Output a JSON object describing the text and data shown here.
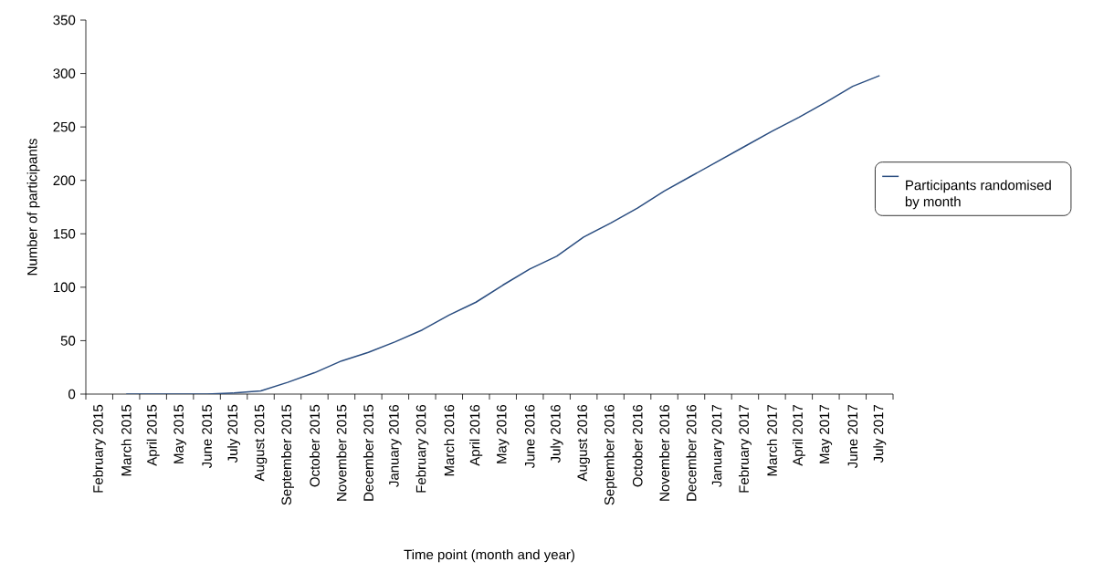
{
  "chart_data": {
    "type": "line",
    "xlabel": "Time point (month and year)",
    "ylabel": "Number of participants",
    "categories": [
      "February 2015",
      "March 2015",
      "April 2015",
      "May 2015",
      "June 2015",
      "July 2015",
      "August 2015",
      "September 2015",
      "October 2015",
      "November 2015",
      "December 2015",
      "January 2016",
      "February 2016",
      "March 2016",
      "April 2016",
      "May 2016",
      "June 2016",
      "July 2016",
      "August 2016",
      "September 2016",
      "October 2016",
      "November 2016",
      "December 2016",
      "January 2017",
      "February 2017",
      "March 2017",
      "April 2017",
      "May 2017",
      "June 2017",
      "July 2017"
    ],
    "series": [
      {
        "name": "Participants randomised by month",
        "color": "#2a4d80",
        "values": [
          null,
          0,
          0,
          0,
          0,
          1,
          3,
          11,
          20,
          31,
          39,
          49,
          60,
          74,
          86,
          102,
          117,
          129,
          147,
          160,
          174,
          190,
          204,
          218,
          232,
          246,
          259,
          273,
          288,
          298
        ]
      }
    ],
    "ylim": [
      0,
      350
    ],
    "yticks": [
      0,
      50,
      100,
      150,
      200,
      250,
      300,
      350
    ],
    "legend": "right",
    "grid": false,
    "marker": "none",
    "line_style": "solid"
  }
}
